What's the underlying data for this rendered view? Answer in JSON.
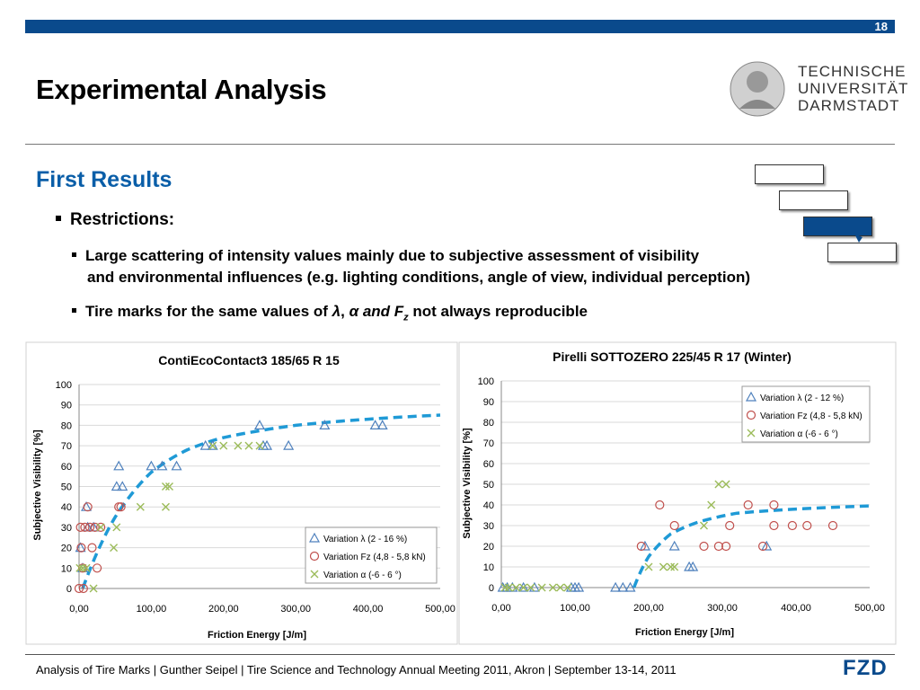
{
  "header": {
    "page_number": "18",
    "title": "Experimental Analysis"
  },
  "logo": {
    "line1": "TECHNISCHE",
    "line2": "UNIVERSITÄT",
    "line3": "DARMSTADT"
  },
  "content": {
    "subtitle": "First Results",
    "bullet1": "Restrictions:",
    "bullet2_line1": "Large scattering of intensity values mainly due to subjective assessment of visibility",
    "bullet2_line2": "and environmental influences (e.g. lighting conditions, angle of view, individual perception)",
    "bullet3_pre": "Tire marks for the same values of ",
    "bullet3_lambda": "λ",
    "bullet3_comma": ", ",
    "bullet3_alpha": "α and F",
    "bullet3_sub": "z",
    "bullet3_post": " not always reproducible"
  },
  "footer": {
    "text": "Analysis of Tire Marks | Gunther Seipel | Tire Science and Technology Annual Meeting 2011, Akron | September 13-14, 2011",
    "brand": "FZD"
  },
  "colors": {
    "accent": "#0a4a8c",
    "lambda": "#4f81bd",
    "fz": "#c0504d",
    "alpha": "#9bbb59",
    "fit": "#1f9ad6"
  },
  "chart_data": [
    {
      "type": "scatter",
      "title": "ContiEcoContact3 185/65 R 15",
      "xlabel": "Friction Energy [J/m]",
      "ylabel": "Subjective Visibility [%]",
      "xlim": [
        0,
        500
      ],
      "ylim": [
        0,
        100
      ],
      "xticks": [
        "0,00",
        "100,00",
        "200,00",
        "300,00",
        "400,00",
        "500,00"
      ],
      "yticks": [
        "0",
        "10",
        "20",
        "30",
        "40",
        "50",
        "60",
        "70",
        "80",
        "90",
        "100"
      ],
      "grid": true,
      "legend_position": "bottom-right",
      "series": [
        {
          "name": "Variation λ (2 - 16 %)",
          "marker": "triangle",
          "points": [
            [
              2,
              20
            ],
            [
              5,
              10
            ],
            [
              10,
              40
            ],
            [
              12,
              30
            ],
            [
              20,
              30
            ],
            [
              52,
              50
            ],
            [
              55,
              60
            ],
            [
              60,
              50
            ],
            [
              100,
              60
            ],
            [
              115,
              60
            ],
            [
              135,
              60
            ],
            [
              175,
              70
            ],
            [
              185,
              70
            ],
            [
              250,
              80
            ],
            [
              255,
              70
            ],
            [
              260,
              70
            ],
            [
              290,
              70
            ],
            [
              340,
              80
            ],
            [
              410,
              80
            ],
            [
              420,
              80
            ]
          ]
        },
        {
          "name": "Variation Fz (4,8 - 5,8 kN)",
          "marker": "circle",
          "points": [
            [
              0,
              0
            ],
            [
              2,
              30
            ],
            [
              3,
              20
            ],
            [
              5,
              10
            ],
            [
              6,
              0
            ],
            [
              8,
              30
            ],
            [
              12,
              40
            ],
            [
              15,
              30
            ],
            [
              18,
              20
            ],
            [
              22,
              30
            ],
            [
              25,
              10
            ],
            [
              30,
              30
            ],
            [
              55,
              40
            ],
            [
              58,
              40
            ]
          ]
        },
        {
          "name": "Variation α (-6 - 6 °)",
          "marker": "cross",
          "points": [
            [
              1,
              10
            ],
            [
              5,
              10
            ],
            [
              10,
              10
            ],
            [
              20,
              0
            ],
            [
              30,
              30
            ],
            [
              48,
              20
            ],
            [
              52,
              30
            ],
            [
              85,
              40
            ],
            [
              120,
              40
            ],
            [
              120,
              50
            ],
            [
              125,
              50
            ],
            [
              185,
              70
            ],
            [
              200,
              70
            ],
            [
              220,
              70
            ],
            [
              235,
              70
            ],
            [
              250,
              70
            ]
          ]
        }
      ],
      "fit_curve": {
        "style": "dashed",
        "points": [
          [
            5,
            0
          ],
          [
            50,
            35
          ],
          [
            100,
            57
          ],
          [
            150,
            68
          ],
          [
            200,
            74
          ],
          [
            300,
            80
          ],
          [
            400,
            83
          ],
          [
            500,
            85
          ]
        ]
      }
    },
    {
      "type": "scatter",
      "title": "Pirelli SOTTOZERO 225/45 R 17 (Winter)",
      "xlabel": "Friction Energy [J/m]",
      "ylabel": "Subjective Visibility [%]",
      "xlim": [
        0,
        500
      ],
      "ylim": [
        0,
        100
      ],
      "xticks": [
        "0,00",
        "100,00",
        "200,00",
        "300,00",
        "400,00",
        "500,00"
      ],
      "yticks": [
        "0",
        "10",
        "20",
        "30",
        "40",
        "50",
        "60",
        "70",
        "80",
        "90",
        "100"
      ],
      "grid": true,
      "legend_position": "top-right",
      "series": [
        {
          "name": "Variation λ (2 - 12 %)",
          "marker": "triangle",
          "points": [
            [
              2,
              0
            ],
            [
              8,
              0
            ],
            [
              15,
              0
            ],
            [
              30,
              0
            ],
            [
              45,
              0
            ],
            [
              95,
              0
            ],
            [
              100,
              0
            ],
            [
              105,
              0
            ],
            [
              155,
              0
            ],
            [
              165,
              0
            ],
            [
              175,
              0
            ],
            [
              195,
              20
            ],
            [
              235,
              20
            ],
            [
              255,
              10
            ],
            [
              260,
              10
            ],
            [
              360,
              20
            ]
          ]
        },
        {
          "name": "Variation Fz (4,8 - 5,8 kN)",
          "marker": "circle",
          "points": [
            [
              190,
              20
            ],
            [
              215,
              40
            ],
            [
              235,
              30
            ],
            [
              275,
              20
            ],
            [
              295,
              20
            ],
            [
              305,
              20
            ],
            [
              310,
              30
            ],
            [
              335,
              40
            ],
            [
              355,
              20
            ],
            [
              370,
              40
            ],
            [
              370,
              30
            ],
            [
              395,
              30
            ],
            [
              415,
              30
            ],
            [
              450,
              30
            ]
          ]
        },
        {
          "name": "Variation α (-6 - 6 °)",
          "marker": "cross",
          "points": [
            [
              5,
              0
            ],
            [
              10,
              0
            ],
            [
              20,
              0
            ],
            [
              30,
              0
            ],
            [
              40,
              0
            ],
            [
              55,
              0
            ],
            [
              70,
              0
            ],
            [
              80,
              0
            ],
            [
              90,
              0
            ],
            [
              200,
              10
            ],
            [
              220,
              10
            ],
            [
              230,
              10
            ],
            [
              235,
              10
            ],
            [
              275,
              30
            ],
            [
              285,
              40
            ],
            [
              295,
              50
            ],
            [
              305,
              50
            ]
          ]
        }
      ],
      "fit_curve": {
        "style": "dashed",
        "points": [
          [
            180,
            0
          ],
          [
            200,
            15
          ],
          [
            230,
            26
          ],
          [
            270,
            32
          ],
          [
            320,
            36
          ],
          [
            400,
            38
          ],
          [
            500,
            39.5
          ]
        ]
      }
    }
  ]
}
